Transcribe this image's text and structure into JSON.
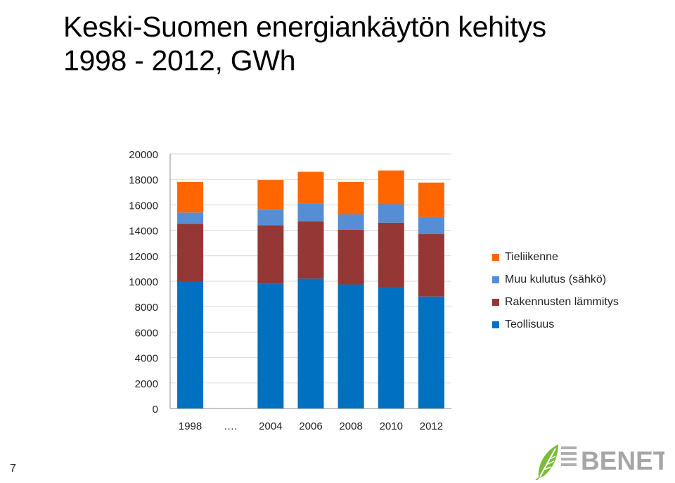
{
  "title": {
    "line1": "Keski-Suomen energiankäytön kehitys",
    "line2": "1998 - 2012, GWh"
  },
  "slide_number": "7",
  "logo": {
    "text": "BENET",
    "icon": "leaf-icon"
  },
  "colors": {
    "teollisuus": "#0070C0",
    "rakennusten": "#953735",
    "muu": "#558ED5",
    "tieliikenne": "#FF6600",
    "axis": "#888888",
    "grid": "#D9D9D9"
  },
  "chart_data": {
    "type": "bar",
    "stacked": true,
    "categories": [
      "1998",
      "….",
      "2004",
      "2006",
      "2008",
      "2010",
      "2012"
    ],
    "ylim": [
      0,
      20000
    ],
    "yticks": [
      0,
      2000,
      4000,
      6000,
      8000,
      10000,
      12000,
      14000,
      16000,
      18000,
      20000
    ],
    "grid": true,
    "legend_position": "right",
    "xlabel": "",
    "ylabel": "",
    "series": [
      {
        "name": "Teollisuus",
        "values": [
          10000,
          null,
          9800,
          10200,
          9750,
          9500,
          8800
        ]
      },
      {
        "name": "Rakennusten lämmitys",
        "values": [
          4500,
          null,
          4600,
          4500,
          4300,
          5100,
          4900
        ]
      },
      {
        "name": "Muu kulutus (sähkö)",
        "values": [
          900,
          null,
          1250,
          1400,
          1200,
          1450,
          1350
        ]
      },
      {
        "name": "Tieliikenne",
        "values": [
          2400,
          null,
          2300,
          2500,
          2550,
          2650,
          2700
        ]
      }
    ]
  },
  "legend": [
    {
      "label": "Tieliikenne",
      "color": "#FF6600"
    },
    {
      "label": "Muu kulutus (sähkö)",
      "color": "#558ED5"
    },
    {
      "label": "Rakennusten lämmitys",
      "color": "#953735"
    },
    {
      "label": "Teollisuus",
      "color": "#0070C0"
    }
  ]
}
